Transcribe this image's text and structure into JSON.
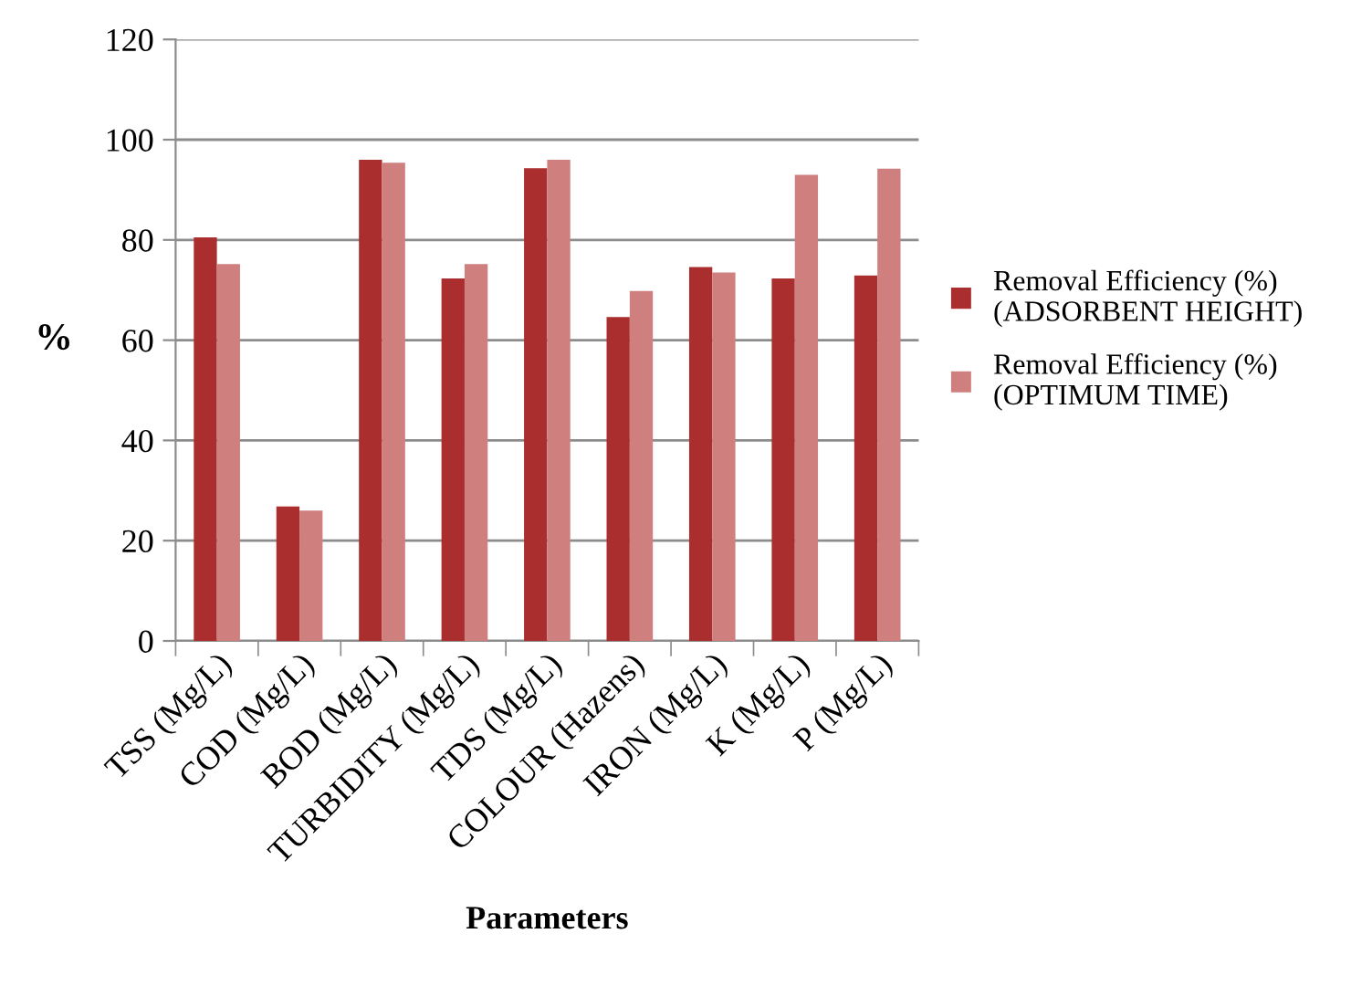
{
  "chart_data": {
    "type": "bar",
    "xlabel": "Parameters",
    "ylabel": "%",
    "categories": [
      "TSS (Mg/L)",
      "COD (Mg/L)",
      "BOD (Mg/L)",
      "TURBIDITY (Mg/L)",
      "TDS (Mg/L)",
      "COLOUR (Hazens)",
      "IRON (Mg/L)",
      "K (Mg/L)",
      "P (Mg/L)"
    ],
    "series": [
      {
        "name": "Removal Efficiency (%)\n(ADSORBENT HEIGHT)",
        "color": "#aa2e2e",
        "values": [
          80.5,
          26.8,
          96,
          72.3,
          94.3,
          64.6,
          74.6,
          72.3,
          72.9
        ]
      },
      {
        "name": "Removal Efficiency (%)\n(OPTIMUM TIME)",
        "color": "#d07f7f",
        "values": [
          75.2,
          26,
          95.4,
          75.2,
          96,
          69.8,
          73.5,
          93,
          94.2
        ]
      }
    ],
    "ylim": [
      0,
      120
    ],
    "yticks": [
      0,
      20,
      40,
      60,
      80,
      100,
      120
    ],
    "grid": "y",
    "legend": "right"
  }
}
